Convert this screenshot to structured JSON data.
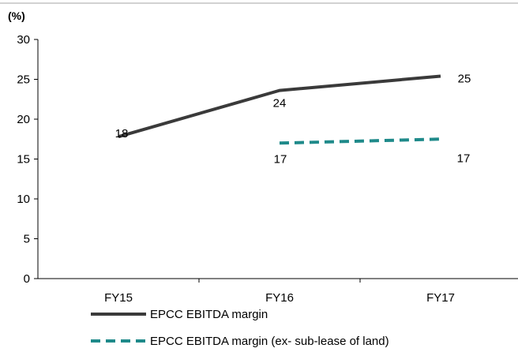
{
  "chart_data": {
    "type": "line",
    "categories": [
      "FY15",
      "FY16",
      "FY17"
    ],
    "y_unit_label": "(%)",
    "ylim": [
      0,
      30
    ],
    "y_ticks": [
      0,
      5,
      10,
      15,
      20,
      25,
      30
    ],
    "grid": false,
    "legend_position": "bottom",
    "series": [
      {
        "name": "EPCC EBITDA margin",
        "values": [
          17.8,
          23.6,
          25.4
        ],
        "labels": [
          "18",
          "24",
          "25"
        ],
        "color": "#3a3a3a",
        "style": "solid"
      },
      {
        "name": "EPCC EBITDA margin (ex- sub-lease of land)",
        "values": [
          null,
          17.0,
          17.5
        ],
        "labels": [
          null,
          "17",
          "17"
        ],
        "color": "#1f8a8a",
        "style": "dashed"
      }
    ]
  }
}
